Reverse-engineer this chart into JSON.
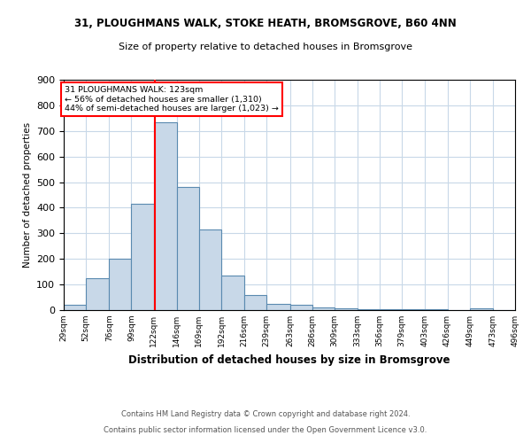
{
  "title1": "31, PLOUGHMANS WALK, STOKE HEATH, BROMSGROVE, B60 4NN",
  "title2": "Size of property relative to detached houses in Bromsgrove",
  "xlabel": "Distribution of detached houses by size in Bromsgrove",
  "ylabel": "Number of detached properties",
  "footnote1": "Contains HM Land Registry data © Crown copyright and database right 2024.",
  "footnote2": "Contains public sector information licensed under the Open Government Licence v3.0.",
  "annotation_line1": "31 PLOUGHMANS WALK: 123sqm",
  "annotation_line2": "← 56% of detached houses are smaller (1,310)",
  "annotation_line3": "44% of semi-detached houses are larger (1,023) →",
  "bar_color": "#c8d8e8",
  "bar_edge_color": "#5a8ab0",
  "red_line_x": 123,
  "bins": [
    29,
    52,
    76,
    99,
    122,
    146,
    169,
    192,
    216,
    239,
    263,
    286,
    309,
    333,
    356,
    379,
    403,
    426,
    449,
    473,
    496
  ],
  "heights": [
    20,
    125,
    200,
    415,
    735,
    480,
    315,
    135,
    60,
    25,
    20,
    10,
    8,
    5,
    5,
    3,
    2,
    1,
    8,
    1,
    1
  ],
  "ylim": [
    0,
    900
  ],
  "yticks": [
    0,
    100,
    200,
    300,
    400,
    500,
    600,
    700,
    800,
    900
  ],
  "bg_color": "#ffffff",
  "grid_color": "#c8d8e8"
}
